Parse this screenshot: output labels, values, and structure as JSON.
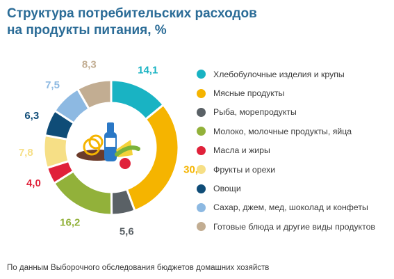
{
  "title_line1": "Структура потребительских расходов",
  "title_line2": "на продукты питания, %",
  "source": "По данным  Выборочного обследования бюджетов домашних хозяйств",
  "chart_data": {
    "type": "pie",
    "donut": true,
    "title": "Структура потребительских расходов на продукты питания, %",
    "legend_position": "right",
    "categories": [
      "Хлебобулочные изделия и крупы",
      "Мясные продукты",
      "Рыба, морепродукты",
      "Молоко, молочные продукты, яйца",
      "Масла и жиры",
      "Фрукты и орехи",
      "Овощи",
      "Сахар, джем, мед, шоколад и конфеты",
      "Готовые блюда и другие виды продуктов"
    ],
    "values": [
      14.1,
      30.2,
      5.6,
      16.2,
      4.0,
      7.8,
      6.3,
      7.5,
      8.3
    ],
    "value_labels": [
      "14,1",
      "30,2",
      "5,6",
      "16,2",
      "4,0",
      "7,8",
      "6,3",
      "7,5",
      "8,3"
    ],
    "colors": [
      "#19b3c3",
      "#f5b400",
      "#5a6166",
      "#92b13a",
      "#e0213a",
      "#f6df86",
      "#0f4c77",
      "#8db9e2",
      "#c2ad92"
    ],
    "center_icon": "food-products-icon"
  }
}
